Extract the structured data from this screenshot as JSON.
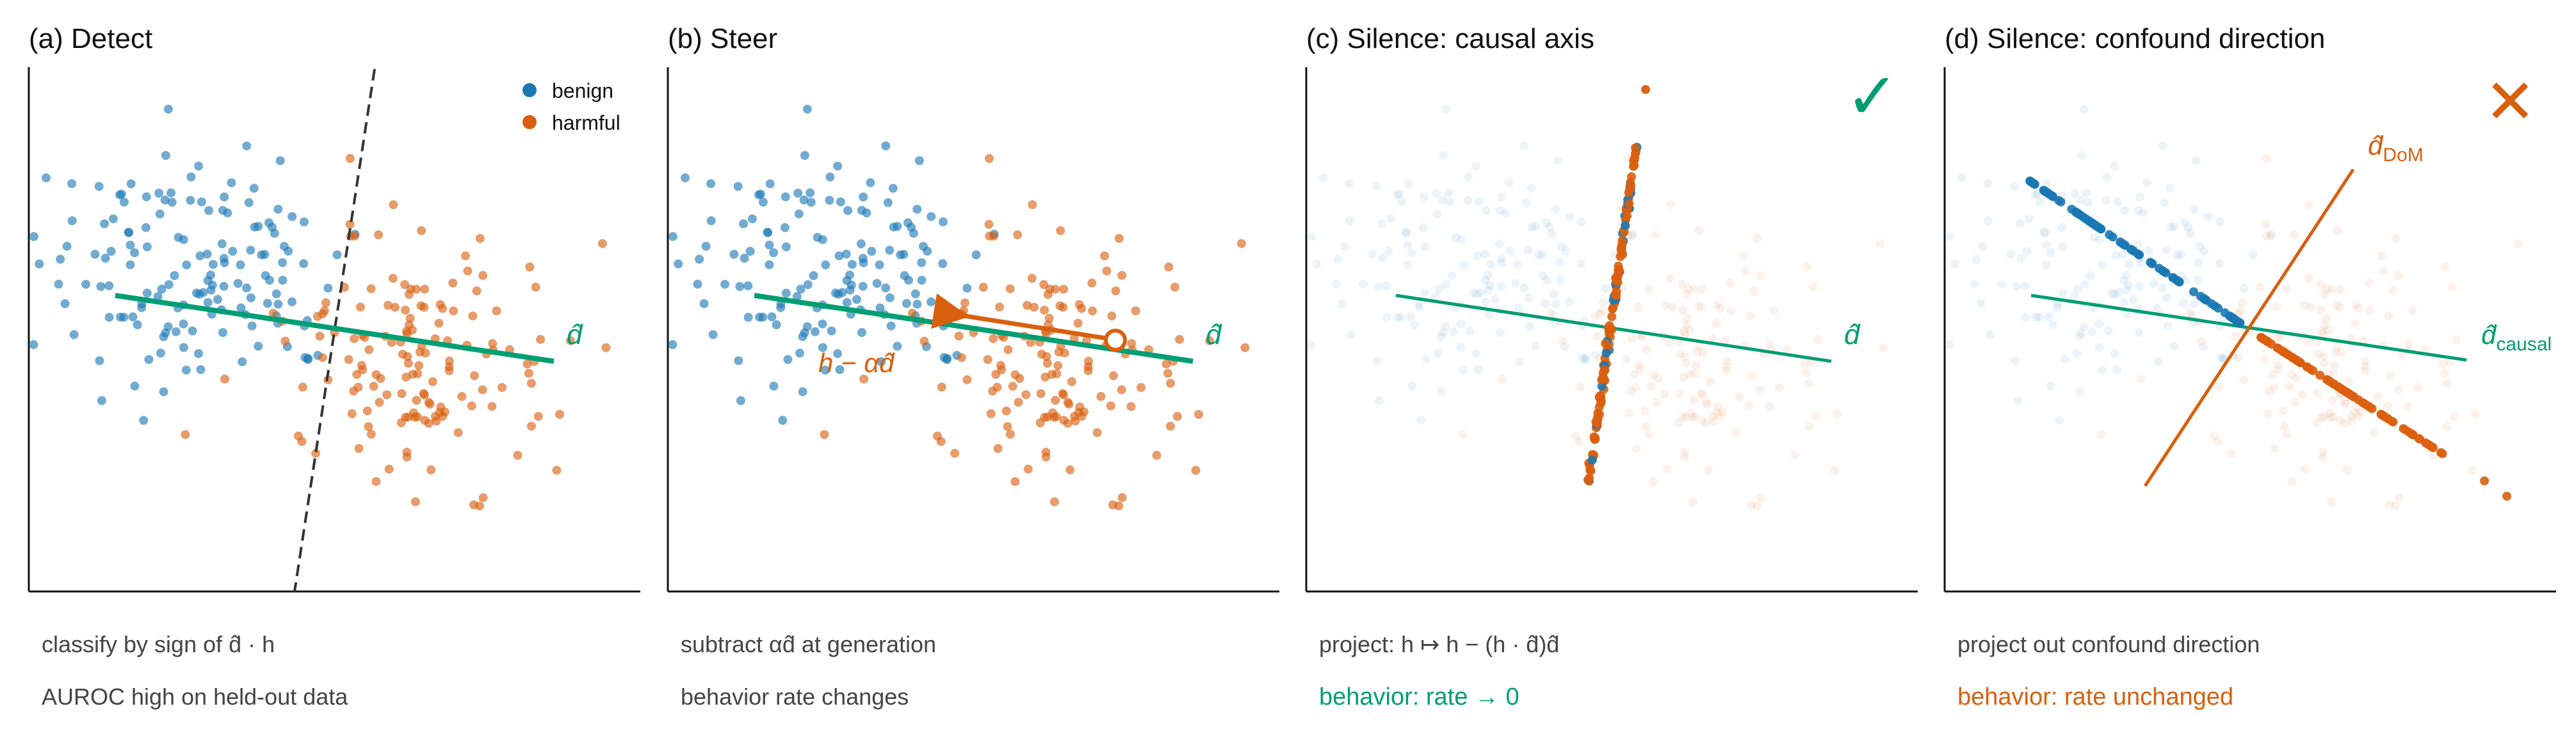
{
  "colors": {
    "benign": "#1a78b4",
    "harmful": "#d95f0e",
    "causal": "#009e73",
    "confound": "#d95f0e",
    "boundary": "#333333",
    "caption": "#444444",
    "axis": "#111111"
  },
  "legend": {
    "benign": "benign",
    "harmful": "harmful",
    "position": "top-right of panel a"
  },
  "panels": [
    {
      "title": "(a) Detect",
      "direction_label": "d̂",
      "caption_line1": "classify by sign of d̂ · h",
      "caption_line2": "AUROC high on held-out data",
      "caption_line2_color": "caption"
    },
    {
      "title": "(b) Steer",
      "direction_label": "d̂",
      "arrow_label": "h − αd̂",
      "caption_line1": "subtract αd̂ at generation",
      "caption_line2": "behavior rate changes",
      "caption_line2_color": "caption"
    },
    {
      "title": "(c) Silence: causal axis",
      "direction_label": "d̂",
      "mark": "✓",
      "caption_line1": "project: h ↦ h − (h · d̂)d̂",
      "caption_line2": "behavior: rate → 0",
      "caption_line2_color": "causal"
    },
    {
      "title": "(d) Silence: confound direction",
      "causal_label_main": "d̂",
      "causal_label_sub": "causal",
      "dom_label_main": "d̂",
      "dom_label_sub": "DoM",
      "mark": "✕",
      "caption_line1": "project out confound direction",
      "caption_line2": "behavior: rate unchanged",
      "caption_line2_color": "confound"
    }
  ]
}
